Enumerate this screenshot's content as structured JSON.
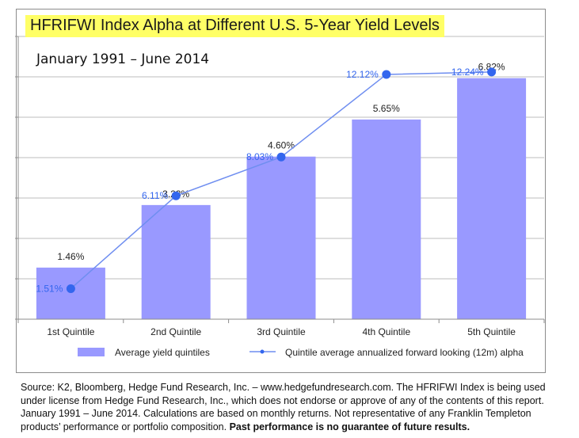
{
  "title": "HFRIFWI Index Alpha at Different U.S. 5-Year Yield Levels",
  "subtitle": "January 1991 – June 2014",
  "source_text": "Source: K2, Bloomberg, Hedge Fund Research, Inc. – www.hedgefundresearch.com. The HFRIFWI Index is being used under license from Hedge Fund Research, Inc., which does not endorse or approve of any of the contents of this report. January 1991 – June 2014. Calculations are based on monthly returns. Not representative of any Franklin Templeton products’ performance or portfolio composition.",
  "disclaimer_bold": "Past performance is no guarantee of future results.",
  "colors": {
    "bar": "#9999ff",
    "line": "#6f8ef0",
    "marker": "#3366ee",
    "title_highlight": "#ffff66"
  },
  "chart_data": {
    "type": "bar+line",
    "categories": [
      "1st Quintile",
      "2nd Quintile",
      "3rd Quintile",
      "4th Quintile",
      "5th Quintile"
    ],
    "series": [
      {
        "name": "Average yield quintiles",
        "type": "bar",
        "values": [
          1.46,
          3.23,
          4.6,
          5.65,
          6.82
        ],
        "labels": [
          "1.46%",
          "3.23%",
          "4.60%",
          "5.65%",
          "6.82%"
        ]
      },
      {
        "name": "Quintile average annualized forward looking (12m) alpha",
        "type": "line",
        "values": [
          1.51,
          6.11,
          8.03,
          12.12,
          12.24
        ],
        "labels": [
          "1.51%",
          "6.11%",
          "8.03%",
          "12.12%",
          "12.24%"
        ]
      }
    ],
    "bar_axis_max": 8,
    "line_axis_max": 14,
    "gridlines": 7,
    "grid": true,
    "y_tick_labels_shown": false,
    "legend_position": "bottom"
  }
}
